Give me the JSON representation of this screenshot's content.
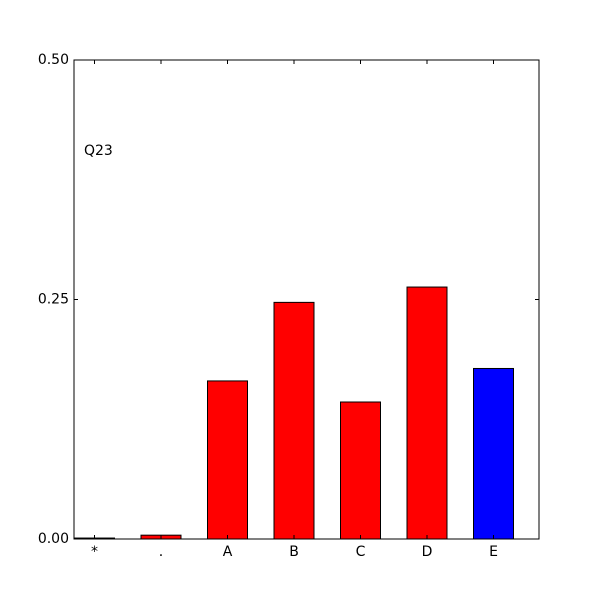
{
  "chart_data": {
    "type": "bar",
    "annotation": "Q23",
    "categories": [
      "*",
      ".",
      "A",
      "B",
      "C",
      "D",
      "E"
    ],
    "values": [
      0.001,
      0.004,
      0.165,
      0.247,
      0.143,
      0.263,
      0.178
    ],
    "colors": [
      "#ff0000",
      "#ff0000",
      "#ff0000",
      "#ff0000",
      "#ff0000",
      "#ff0000",
      "#0000ff"
    ],
    "ylim": [
      0,
      0.5
    ],
    "yticks": [
      {
        "value": 0,
        "label": "0.00"
      },
      {
        "value": 0.25,
        "label": "0.25"
      },
      {
        "value": 0.5,
        "label": "0.50"
      }
    ],
    "grid": false
  }
}
